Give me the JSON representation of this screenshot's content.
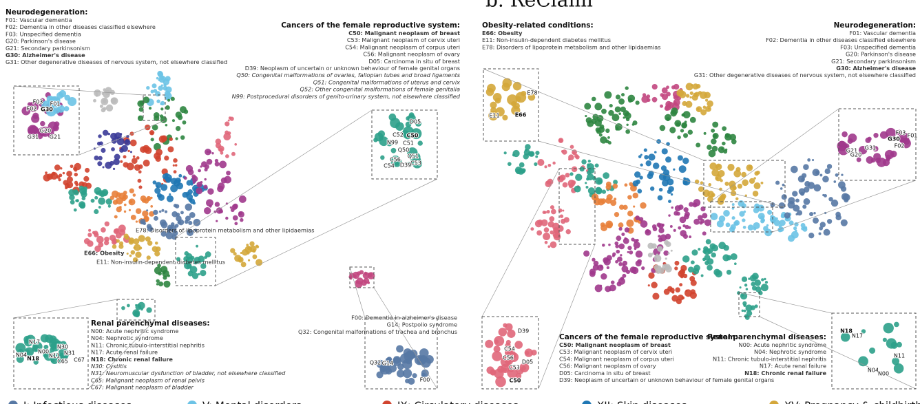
{
  "heading": "b. ReClaim",
  "left_panel": {
    "annotations": [
      {
        "title": "Neurodegeneration:",
        "items": [
          {
            "text": "F01: Vascular dementia"
          },
          {
            "text": "F02: Dementia in other diseases classified elsewhere"
          },
          {
            "text": "F03: Unspecified dementia"
          },
          {
            "text": "G20: Parkinson's disease"
          },
          {
            "text": "G21: Secondary parkinsonism"
          },
          {
            "text": "G30: Alzheimer's disease",
            "bold": true
          },
          {
            "text": "G31: Other degenerative diseases of nervous system, not elsewhere classified"
          }
        ]
      },
      {
        "title": "Cancers of the female reproductive system:",
        "items": [
          {
            "text": "C50: Malignant neoplasm of breast",
            "bold": true
          },
          {
            "text": "C53: Malignant neoplasm of cervix uteri"
          },
          {
            "text": "C54: Malignant neoplasm of corpus uteri"
          },
          {
            "text": "C56: Malignant neoplasm of ovary"
          },
          {
            "text": "D05: Carcinoma in situ of breast"
          },
          {
            "text": "D39: Neoplasm of uncertain or unknown behaviour of female genital organs"
          },
          {
            "text": "Q50: Congenital malformations of ovaries, fallopian tubes and broad ligaments",
            "italic": true
          },
          {
            "text": "Q51: Congenital malformations of uterus and cervix",
            "italic": true
          },
          {
            "text": "Q52: Other congenital malformations of female genitalia",
            "italic": true
          },
          {
            "text": "N99: Postprocedural disorders of genito-urinary system, not elsewhere classified",
            "italic": true
          }
        ]
      },
      {
        "title": "Renal parenchymal diseases:",
        "items": [
          {
            "text": "N00: Acute nephritic syndrome"
          },
          {
            "text": "N04: Nephrotic syndrome"
          },
          {
            "text": "N11: Chronic tubulo-interstitial nephritis"
          },
          {
            "text": "N17: Acute renal failure"
          },
          {
            "text": "N18: Chronic renal failure",
            "bold": true
          },
          {
            "text": "N30: Cystitis",
            "italic": true
          },
          {
            "text": "N31: Neuromuscular dysfunction of bladder, not elsewhere classified",
            "italic": true
          },
          {
            "text": "C65: Malignant neoplasm of renal pelvis",
            "italic": true
          },
          {
            "text": "C67: Malignant neoplasm of bladder",
            "italic": true
          }
        ]
      },
      {
        "items": [
          {
            "text": "F00: Dementia in alzheimer's disease"
          },
          {
            "text": "G14: Postpolio syndrome"
          },
          {
            "text": "Q32: Congenital malformations of trachea and bronchus"
          }
        ]
      }
    ],
    "labels": [
      {
        "text": "E78: Disorders of lipoprotein metabolism and other lipidaemias"
      },
      {
        "text": "E66: Obesity",
        "bold": true
      },
      {
        "text": "E11: Non-insulin-dependent diabetes mellitus"
      }
    ],
    "insets": [
      {
        "labels": [
          {
            "text": "F03"
          },
          {
            "text": "F01"
          },
          {
            "text": "F02"
          },
          {
            "text": "G30",
            "bold": true
          },
          {
            "text": "G20"
          },
          {
            "text": "G31"
          },
          {
            "text": "G21"
          }
        ]
      },
      {
        "labels": [
          {
            "text": "D05"
          },
          {
            "text": "C52"
          },
          {
            "text": "C50",
            "bold": true
          },
          {
            "text": "N99"
          },
          {
            "text": "C51"
          },
          {
            "text": "Q50"
          },
          {
            "text": "Q51"
          },
          {
            "text": "C56"
          },
          {
            "text": "C53"
          },
          {
            "text": "C54"
          },
          {
            "text": "D39"
          }
        ]
      },
      {
        "labels": [
          {
            "text": "N17"
          },
          {
            "text": "N30"
          },
          {
            "text": "N04"
          },
          {
            "text": "N00"
          },
          {
            "text": "N11"
          },
          {
            "text": "N31"
          },
          {
            "text": "N18",
            "bold": true
          },
          {
            "text": "C65"
          },
          {
            "text": "C67"
          }
        ]
      },
      {
        "labels": [
          {
            "text": "Q32"
          },
          {
            "text": "G14"
          },
          {
            "text": "F00"
          }
        ]
      }
    ]
  },
  "right_panel": {
    "annotations": [
      {
        "title": "Obesity-related conditions:",
        "items": [
          {
            "text": "E66: Obesity",
            "bold": true
          },
          {
            "text": "E11: Non-insulin-dependent diabetes mellitus"
          },
          {
            "text": "E78: Disorders of lipoprotein metabolism and other lipidaemias"
          }
        ]
      },
      {
        "title": "Neurodegeneration:",
        "items": [
          {
            "text": "F01: Vascular dementia"
          },
          {
            "text": "F02: Dementia in other diseases classified elsewhere"
          },
          {
            "text": "F03: Unspecified dementia"
          },
          {
            "text": "G20: Parkinson's disease"
          },
          {
            "text": "G21: Secondary parkinsonism"
          },
          {
            "text": "G30: Alzheimer's disease",
            "bold": true
          },
          {
            "text": "G31: Other degenerative diseases of nervous system, not elsewhere classified"
          }
        ]
      },
      {
        "title": "Cancers of the female reproductive system:",
        "items": [
          {
            "text": "C50: Malignant neoplasm of breast",
            "bold": true
          },
          {
            "text": "C53: Malignant neoplasm of cervix uteri"
          },
          {
            "text": "C54: Malignant neoplasm of corpus uteri"
          },
          {
            "text": "C56: Malignant neoplasm of ovary"
          },
          {
            "text": "D05: Carcinoma in situ of breast"
          },
          {
            "text": "D39: Neoplasm of uncertain or unknown behaviour of female genital organs"
          }
        ]
      },
      {
        "title": "Renal parenchymal diseases:",
        "items": [
          {
            "text": "N00: Acute nephritic syndrome"
          },
          {
            "text": "N04: Nephrotic syndrome"
          },
          {
            "text": "N11: Chronic tubulo-interstitial nephritis"
          },
          {
            "text": "N17: Acute renal failure"
          },
          {
            "text": "N18: Chronic renal failure",
            "bold": true
          }
        ]
      }
    ],
    "insets": [
      {
        "labels": [
          {
            "text": "E78"
          },
          {
            "text": "E66",
            "bold": true
          },
          {
            "text": "E11"
          }
        ]
      },
      {
        "labels": [
          {
            "text": "G30",
            "bold": true
          },
          {
            "text": "F03"
          },
          {
            "text": "F01"
          },
          {
            "text": "G21"
          },
          {
            "text": "G31"
          },
          {
            "text": "F02"
          },
          {
            "text": "G20"
          }
        ]
      },
      {
        "labels": [
          {
            "text": "D39"
          },
          {
            "text": "C54"
          },
          {
            "text": "C56"
          },
          {
            "text": "D05"
          },
          {
            "text": "C53"
          },
          {
            "text": "C50",
            "bold": true
          }
        ]
      },
      {
        "labels": [
          {
            "text": "N18",
            "bold": true
          },
          {
            "text": "N17"
          },
          {
            "text": "N11"
          },
          {
            "text": "N04"
          },
          {
            "text": "N00"
          }
        ]
      }
    ]
  },
  "legend": [
    {
      "name": "I: Infectious diseases",
      "color": "#5778a4"
    },
    {
      "name": "V: Mental disorders",
      "color": "#6cc3e6"
    },
    {
      "name": "IX: Circulatory diseases",
      "color": "#d1432e"
    },
    {
      "name": "XII: Skin diseases",
      "color": "#1f77b4"
    },
    {
      "name": "XV: Pregnancy & childbirth",
      "color": "#d4a73a"
    }
  ]
}
